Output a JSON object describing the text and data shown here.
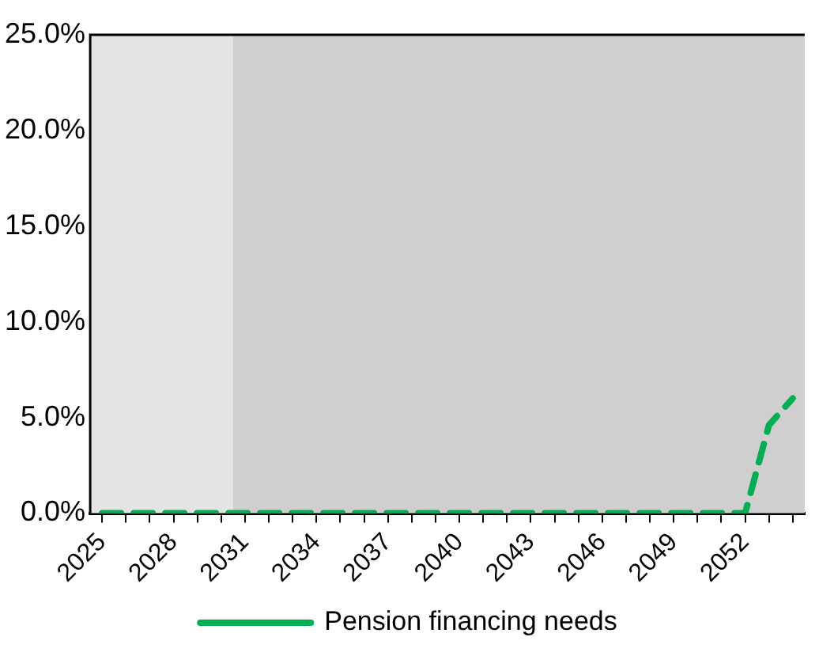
{
  "chart_data": {
    "type": "line",
    "x": [
      2025,
      2026,
      2027,
      2028,
      2029,
      2030,
      2031,
      2032,
      2033,
      2034,
      2035,
      2036,
      2037,
      2038,
      2039,
      2040,
      2041,
      2042,
      2043,
      2044,
      2045,
      2046,
      2047,
      2048,
      2049,
      2050,
      2051,
      2052,
      2053,
      2054
    ],
    "series": [
      {
        "name": "Pension financing needs",
        "color": "#00b050",
        "values": [
          0,
          0,
          0,
          0,
          0,
          0,
          0,
          0,
          0,
          0,
          0,
          0,
          0,
          0,
          0,
          0,
          0,
          0,
          0,
          0,
          0,
          0,
          0,
          0,
          0,
          0,
          0,
          0,
          4.6,
          6.0
        ]
      }
    ],
    "xlim": [
      2024.5,
      2054.5
    ],
    "xticks": [
      2025,
      {
        "value": 2026,
        "label": null
      },
      {
        "value": 2027,
        "label": null
      },
      2028,
      {
        "value": 2029,
        "label": null
      },
      {
        "value": 2030,
        "label": null
      },
      2031,
      {
        "value": 2032,
        "label": null
      },
      {
        "value": 2033,
        "label": null
      },
      2034,
      {
        "value": 2035,
        "label": null
      },
      {
        "value": 2036,
        "label": null
      },
      2037,
      {
        "value": 2038,
        "label": null
      },
      {
        "value": 2039,
        "label": null
      },
      2040,
      {
        "value": 2041,
        "label": null
      },
      {
        "value": 2042,
        "label": null
      },
      2043,
      {
        "value": 2044,
        "label": null
      },
      {
        "value": 2045,
        "label": null
      },
      2046,
      {
        "value": 2047,
        "label": null
      },
      {
        "value": 2048,
        "label": null
      },
      2049,
      {
        "value": 2050,
        "label": null
      },
      {
        "value": 2051,
        "label": null
      },
      2052,
      {
        "value": 2053,
        "label": null
      },
      {
        "value": 2054,
        "label": null
      }
    ],
    "ylim": [
      0,
      25
    ],
    "yticks": [
      {
        "value": 0,
        "label": "0.0%"
      },
      {
        "value": 5,
        "label": "5.0%"
      },
      {
        "value": 10,
        "label": "10.0%"
      },
      {
        "value": 15,
        "label": "15.0%"
      },
      {
        "value": 20,
        "label": "20.0%"
      },
      {
        "value": 25,
        "label": "25.0%"
      }
    ],
    "bands": [
      {
        "axis": "x",
        "from": 2024.5,
        "to": 2030.5,
        "color": "#e4e4e4"
      },
      {
        "axis": "x",
        "from": 2030.5,
        "to": 2054.5,
        "color": "#d0cecf"
      }
    ],
    "legend": "bottom",
    "line_style": "dashed",
    "marker": "none"
  }
}
